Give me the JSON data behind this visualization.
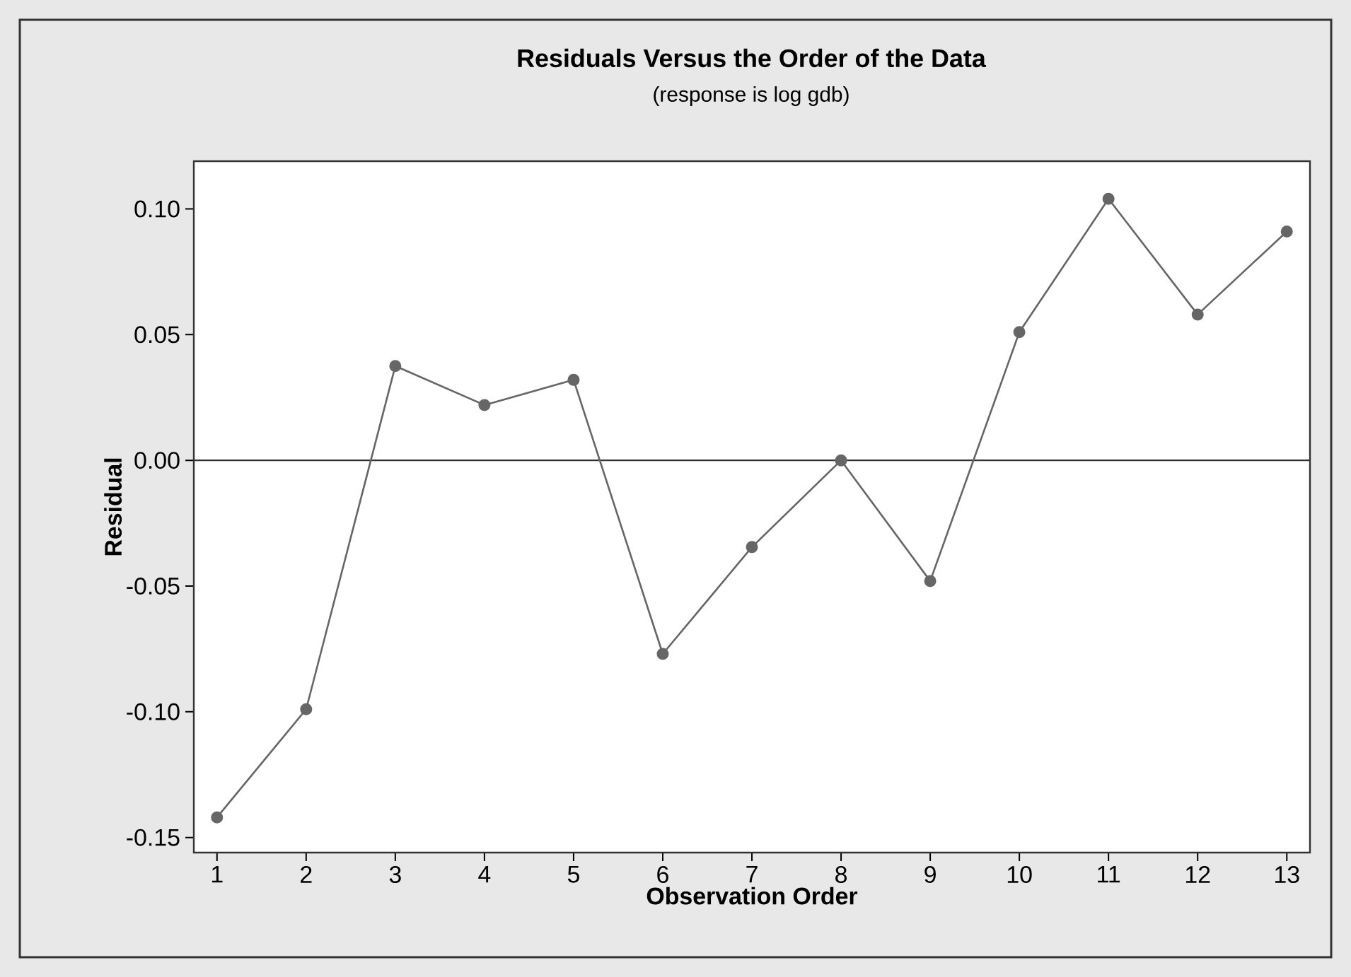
{
  "chart_data": {
    "type": "line",
    "title": "Residuals Versus the Order of the Data",
    "subtitle": "(response is log gdb)",
    "xlabel": "Observation Order",
    "ylabel": "Residual",
    "x": [
      1,
      2,
      3,
      4,
      5,
      6,
      7,
      8,
      9,
      10,
      11,
      12,
      13
    ],
    "series": [
      {
        "color": "#666666",
        "values": [
          -0.142,
          -0.099,
          0.0375,
          0.022,
          0.032,
          -0.077,
          -0.0345,
          0.0,
          -0.048,
          0.051,
          0.104,
          0.058,
          0.091
        ]
      }
    ],
    "xlim": [
      0.74,
      13.26
    ],
    "xticks": [
      1,
      2,
      3,
      4,
      5,
      6,
      7,
      8,
      9,
      10,
      11,
      12,
      13
    ],
    "ylim": [
      -0.156,
      0.119
    ],
    "yticks": [
      {
        "value": -0.15,
        "label": "-0.15"
      },
      {
        "value": -0.1,
        "label": "-0.10"
      },
      {
        "value": -0.05,
        "label": "-0.05"
      },
      {
        "value": 0,
        "label": "0.00"
      },
      {
        "value": 0.05,
        "label": "0.05"
      },
      {
        "value": 0.1,
        "label": "0.10"
      }
    ],
    "ref_lines": [
      {
        "axis": "y",
        "value": 0,
        "color": "#333333"
      }
    ],
    "grid": false,
    "marker": "circle",
    "line_style": "solid"
  }
}
